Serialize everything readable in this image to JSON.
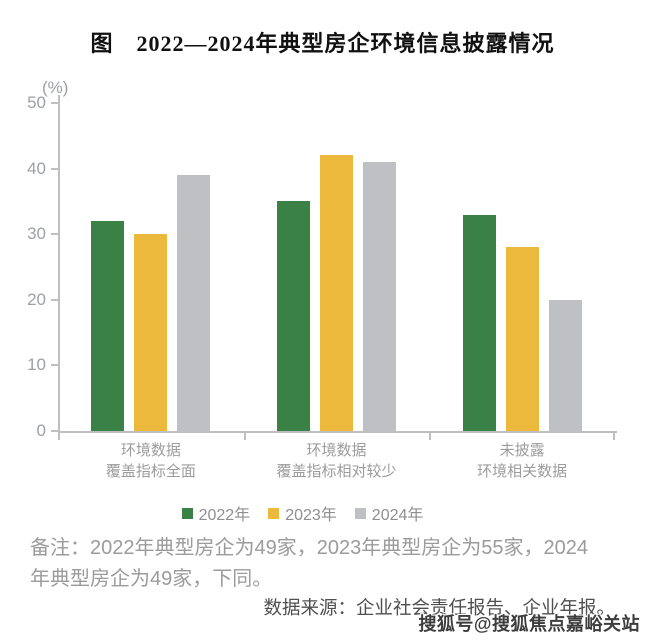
{
  "title": "图　2022—2024年典型房企环境信息披露情况",
  "chart_data": {
    "type": "bar",
    "title": "图　2022—2024年典型房企环境信息披露情况",
    "unit_label": "(%)",
    "categories": [
      {
        "line1": "环境数据",
        "line2": "覆盖指标全面"
      },
      {
        "line1": "环境数据",
        "line2": "覆盖指标相对较少"
      },
      {
        "line1": "未披露",
        "line2": "环境相关数据"
      }
    ],
    "series": [
      {
        "name": "2022年",
        "color": "#3a8145",
        "values": [
          32,
          35,
          33
        ]
      },
      {
        "name": "2023年",
        "color": "#edb93c",
        "values": [
          30,
          42,
          28
        ]
      },
      {
        "name": "2024年",
        "color": "#bec0c4",
        "values": [
          39,
          41,
          20
        ]
      }
    ],
    "ylim": [
      0,
      50
    ],
    "yticks": [
      0,
      10,
      20,
      30,
      40,
      50
    ],
    "grid": false,
    "legend_position": "bottom"
  },
  "note": {
    "lines": [
      "备注：2022年典型房企为49家，2023年典型房企为55家，2024",
      "年典型房企为49家，下同。"
    ]
  },
  "source_text": "数据来源：企业社会责任报告、企业年报。",
  "watermark": "搜狐号@搜狐焦点嘉峪关站",
  "colors": {
    "background": "#ffffff",
    "axis": "#bdbfc1",
    "tick_label": "#9da1a3",
    "category_label": "#9c9c9c",
    "legend_label": "#8f8f8f",
    "note_text": "#9b9b9b",
    "source_text": "#4f4f4f",
    "title_text": "#111111",
    "watermark_text": "#3d3d3d"
  }
}
